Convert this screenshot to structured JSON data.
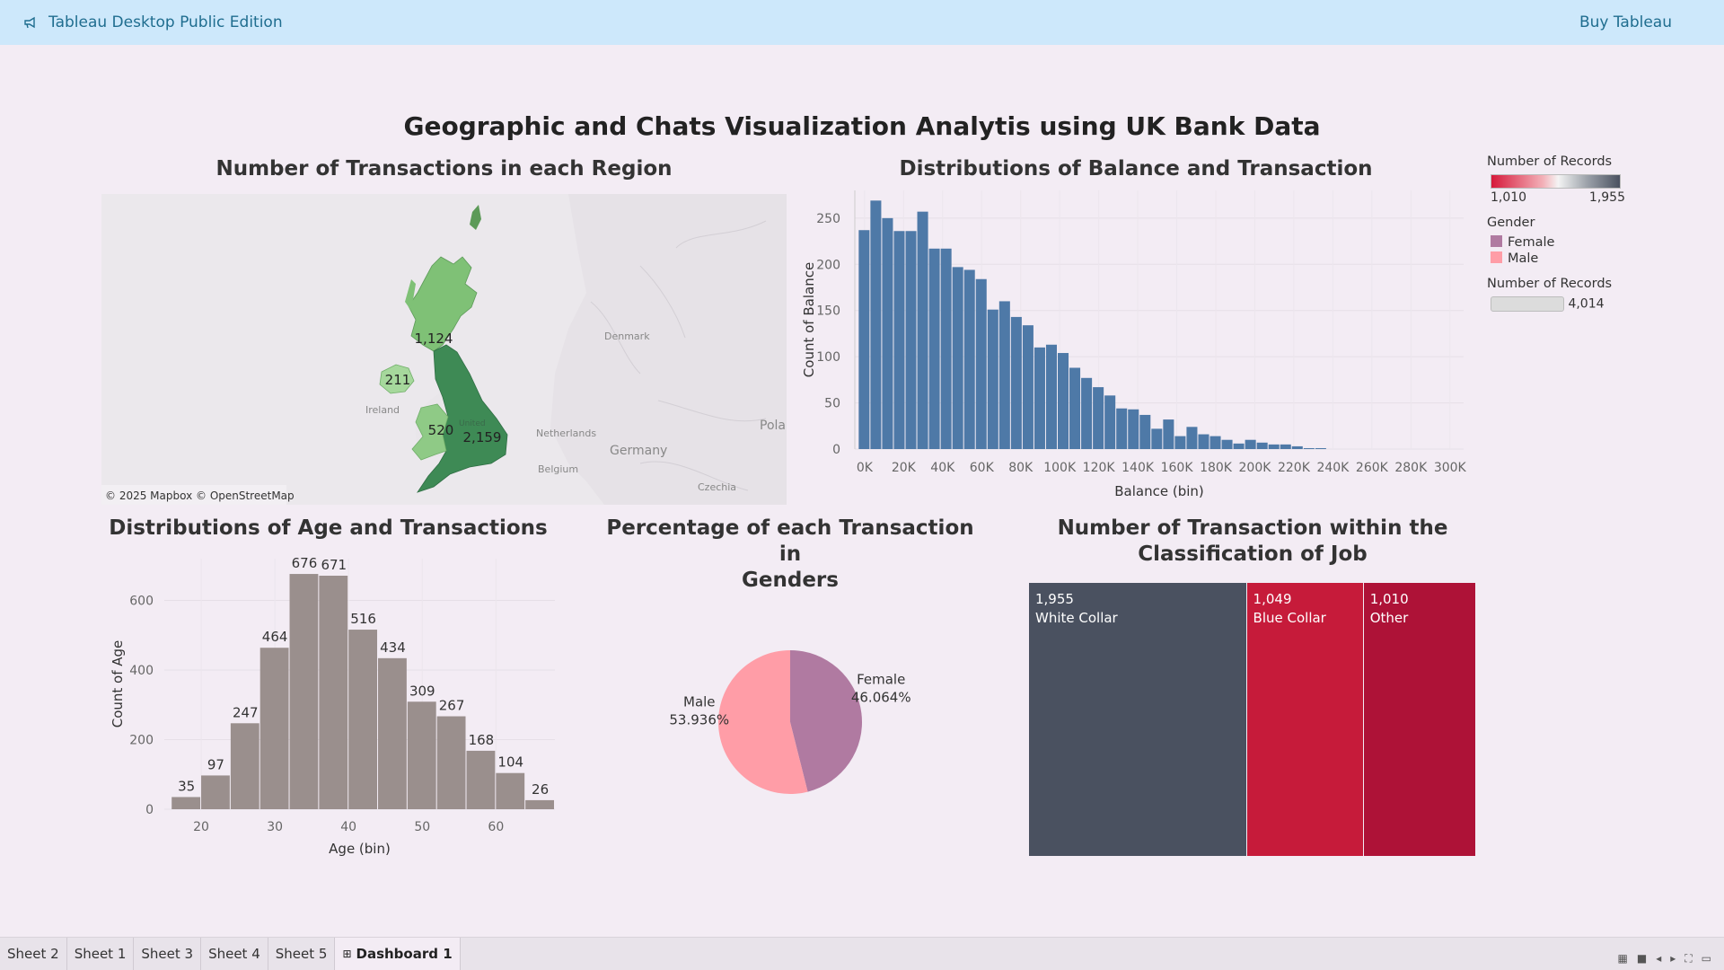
{
  "topbar": {
    "app_title": "Tableau Desktop Public Edition",
    "buy_label": "Buy Tableau",
    "icon": "megaphone-icon"
  },
  "dashboard": {
    "title": "Geographic and Chats Visualization Analytis using UK Bank Data"
  },
  "map": {
    "title": "Number of Transactions in each Region",
    "regions": [
      {
        "name": "Scotland",
        "value": "1,124",
        "color": "#7fc176"
      },
      {
        "name": "Northern Ireland",
        "value": "211",
        "color": "#a6d89c"
      },
      {
        "name": "Wales",
        "value": "520",
        "color": "#8fca86"
      },
      {
        "name": "England",
        "value": "2,159",
        "color": "#3e8a55"
      }
    ],
    "place_labels": [
      "Ireland",
      "Denmark",
      "Netherlands",
      "Belgium",
      "Germany",
      "Pola",
      "Czechia",
      "United"
    ],
    "attribution": "© 2025 Mapbox © OpenStreetMap"
  },
  "legend": {
    "records_title": "Number of Records",
    "records_min": "1,010",
    "records_max": "1,955",
    "gender_title": "Gender",
    "gender_items": [
      {
        "label": "Female",
        "color": "#b07aa1"
      },
      {
        "label": "Male",
        "color": "#ff9da7"
      }
    ],
    "size_title": "Number of Records",
    "size_value": "4,014"
  },
  "pie": {
    "title_line1": "Percentage of each Transaction in",
    "title_line2": "Genders"
  },
  "treemap": {
    "title_line1": "Number of Transaction within the",
    "title_line2": "Classification of Job"
  },
  "chart_data": [
    {
      "type": "bar",
      "id": "balance",
      "title": "Distributions of Balance and Transaction",
      "xlabel": "Balance (bin)",
      "ylabel": "Count of Balance",
      "x_tick_labels": [
        "0K",
        "20K",
        "40K",
        "60K",
        "80K",
        "100K",
        "120K",
        "140K",
        "160K",
        "180K",
        "200K",
        "220K",
        "240K",
        "260K",
        "280K",
        "300K"
      ],
      "x_tick_values": [
        0,
        20000,
        40000,
        60000,
        80000,
        100000,
        120000,
        140000,
        160000,
        180000,
        200000,
        220000,
        240000,
        260000,
        280000,
        300000
      ],
      "y_ticks": [
        0,
        50,
        100,
        150,
        200,
        250
      ],
      "ylim": [
        0,
        280
      ],
      "xlim": [
        -5000,
        307000
      ],
      "bin_width": 6000,
      "bin_starts": [
        -3000,
        3000,
        9000,
        15000,
        21000,
        27000,
        33000,
        39000,
        45000,
        51000,
        57000,
        63000,
        69000,
        75000,
        81000,
        87000,
        93000,
        99000,
        105000,
        111000,
        117000,
        123000,
        129000,
        135000,
        141000,
        147000,
        153000,
        159000,
        165000,
        171000,
        177000,
        183000,
        189000,
        195000,
        201000,
        207000,
        213000,
        219000,
        225000,
        231000
      ],
      "values": [
        237,
        269,
        250,
        236,
        236,
        257,
        217,
        217,
        197,
        194,
        184,
        151,
        160,
        143,
        134,
        110,
        113,
        104,
        88,
        77,
        67,
        58,
        44,
        43,
        37,
        22,
        32,
        14,
        24,
        16,
        14,
        10,
        6,
        10,
        7,
        5,
        5,
        3,
        1,
        1
      ],
      "color": "#4e79a7"
    },
    {
      "type": "bar",
      "id": "age",
      "title": "Distributions of Age and Transactions",
      "xlabel": "Age (bin)",
      "ylabel": "Count of Age",
      "x_ticks": [
        20,
        30,
        40,
        50,
        60
      ],
      "y_ticks": [
        0,
        200,
        400,
        600
      ],
      "ylim": [
        0,
        720
      ],
      "xlim": [
        15,
        68
      ],
      "bin_width": 4,
      "bin_starts": [
        16,
        20,
        24,
        28,
        32,
        36,
        40,
        44,
        48,
        52,
        56,
        60,
        64
      ],
      "values": [
        35,
        97,
        247,
        464,
        676,
        671,
        516,
        434,
        309,
        267,
        168,
        104,
        26
      ],
      "value_labels": [
        "35",
        "97",
        "247",
        "464",
        "676",
        "671",
        "516",
        "434",
        "309",
        "267",
        "168",
        "104",
        "26"
      ],
      "color": "#9a8f8d"
    },
    {
      "type": "pie",
      "id": "gender",
      "slices": [
        {
          "name": "Female",
          "label": "Female",
          "pct": 46.064,
          "pct_label": "46.064%",
          "color": "#b07aa1"
        },
        {
          "name": "Male",
          "label": "Male",
          "pct": 53.936,
          "pct_label": "53.936%",
          "color": "#ff9da7"
        }
      ]
    },
    {
      "type": "treemap",
      "id": "job",
      "items": [
        {
          "name": "White Collar",
          "value": 1955,
          "value_label": "1,955",
          "color": "#4a5160"
        },
        {
          "name": "Blue Collar",
          "value": 1049,
          "value_label": "1,049",
          "color": "#c61b3a"
        },
        {
          "name": "Other",
          "value": 1010,
          "value_label": "1,010",
          "color": "#ae1237"
        }
      ]
    }
  ],
  "tabs": [
    {
      "label": "Sheet 2",
      "active": false
    },
    {
      "label": "Sheet 1",
      "active": false
    },
    {
      "label": "Sheet 3",
      "active": false
    },
    {
      "label": "Sheet 4",
      "active": false
    },
    {
      "label": "Sheet 5",
      "active": false
    },
    {
      "label": "Dashboard 1",
      "active": true
    }
  ]
}
